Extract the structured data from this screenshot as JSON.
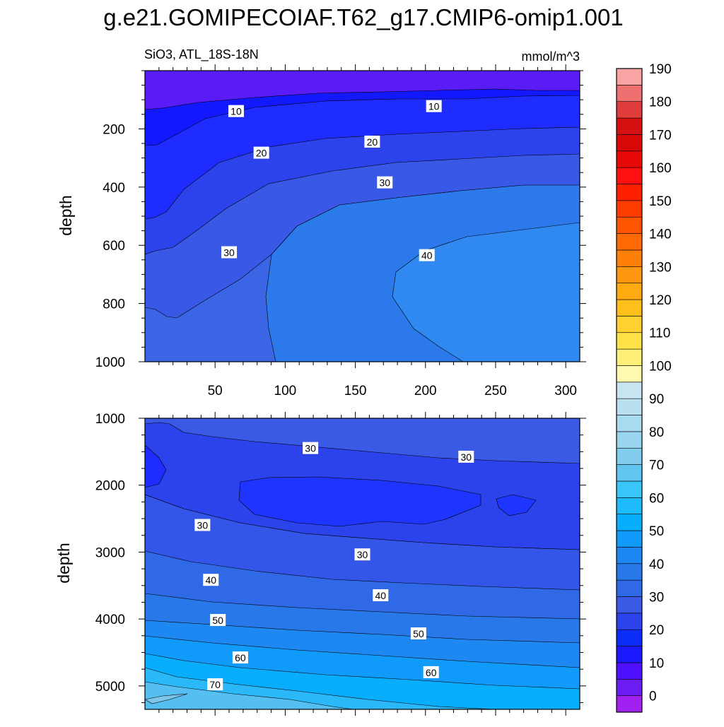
{
  "title": "g.e21.GOMIPECOIAF.T62_g17.CMIP6-omip1.001",
  "chart_data": [
    {
      "type": "contour",
      "left_label": "SiO3, ATL_18S-18N",
      "right_label": "mmol/m^3",
      "ylabel": "depth",
      "xlim": [
        0,
        310
      ],
      "ylim": [
        0,
        1000
      ],
      "y_reversed": true,
      "xticks": [
        50,
        100,
        150,
        200,
        250,
        300
      ],
      "yticks": [
        200,
        400,
        600,
        800,
        1000
      ],
      "contour_labels": [
        {
          "text": "10",
          "x": 65,
          "y": 140
        },
        {
          "text": "10",
          "x": 206,
          "y": 123
        },
        {
          "text": "20",
          "x": 83,
          "y": 283
        },
        {
          "text": "20",
          "x": 162,
          "y": 245
        },
        {
          "text": "30",
          "x": 171,
          "y": 385
        },
        {
          "text": "30",
          "x": 60,
          "y": 625
        },
        {
          "text": "40",
          "x": 201,
          "y": 635
        }
      ]
    },
    {
      "type": "contour",
      "ylabel": "depth",
      "xlim": [
        0,
        310
      ],
      "ylim": [
        1000,
        5350
      ],
      "y_reversed": true,
      "yticks": [
        1000,
        2000,
        3000,
        4000,
        5000
      ],
      "contour_labels": [
        {
          "text": "30",
          "x": 118,
          "y": 1450
        },
        {
          "text": "30",
          "x": 229,
          "y": 1580
        },
        {
          "text": "30",
          "x": 41,
          "y": 2600
        },
        {
          "text": "30",
          "x": 155,
          "y": 3040
        },
        {
          "text": "40",
          "x": 47,
          "y": 3420
        },
        {
          "text": "40",
          "x": 168,
          "y": 3650
        },
        {
          "text": "50",
          "x": 52,
          "y": 4020
        },
        {
          "text": "50",
          "x": 195,
          "y": 4220
        },
        {
          "text": "60",
          "x": 68,
          "y": 4580
        },
        {
          "text": "60",
          "x": 204,
          "y": 4800
        },
        {
          "text": "70",
          "x": 50,
          "y": 4980
        }
      ]
    }
  ],
  "colorbar": {
    "labels": [
      "0",
      "10",
      "20",
      "30",
      "40",
      "50",
      "60",
      "70",
      "80",
      "90",
      "100",
      "110",
      "120",
      "130",
      "140",
      "150",
      "160",
      "170",
      "180",
      "190"
    ],
    "colors": [
      "#a020f0",
      "#6a1cf2",
      "#4e10ff",
      "#1a18ff",
      "#0c2cf8",
      "#2c42ea",
      "#3a5ae6",
      "#2f69e6",
      "#2878ea",
      "#1e88f2",
      "#109bfb",
      "#08adfc",
      "#1ebcfb",
      "#3ac6f8",
      "#62c5ef",
      "#82cdee",
      "#9ad5f0",
      "#a8daf0",
      "#bae0f0",
      "#c8e6f2",
      "#fffab0",
      "#fff07a",
      "#ffe248",
      "#ffd030",
      "#ffbf1a",
      "#ffaa10",
      "#ff9810",
      "#ff8008",
      "#ff6a04",
      "#ff5400",
      "#ff3c00",
      "#ff2000",
      "#ff1010",
      "#e80808",
      "#d80808",
      "#d41010",
      "#e03c3c",
      "#ee7070",
      "#f8a4a4"
    ]
  }
}
